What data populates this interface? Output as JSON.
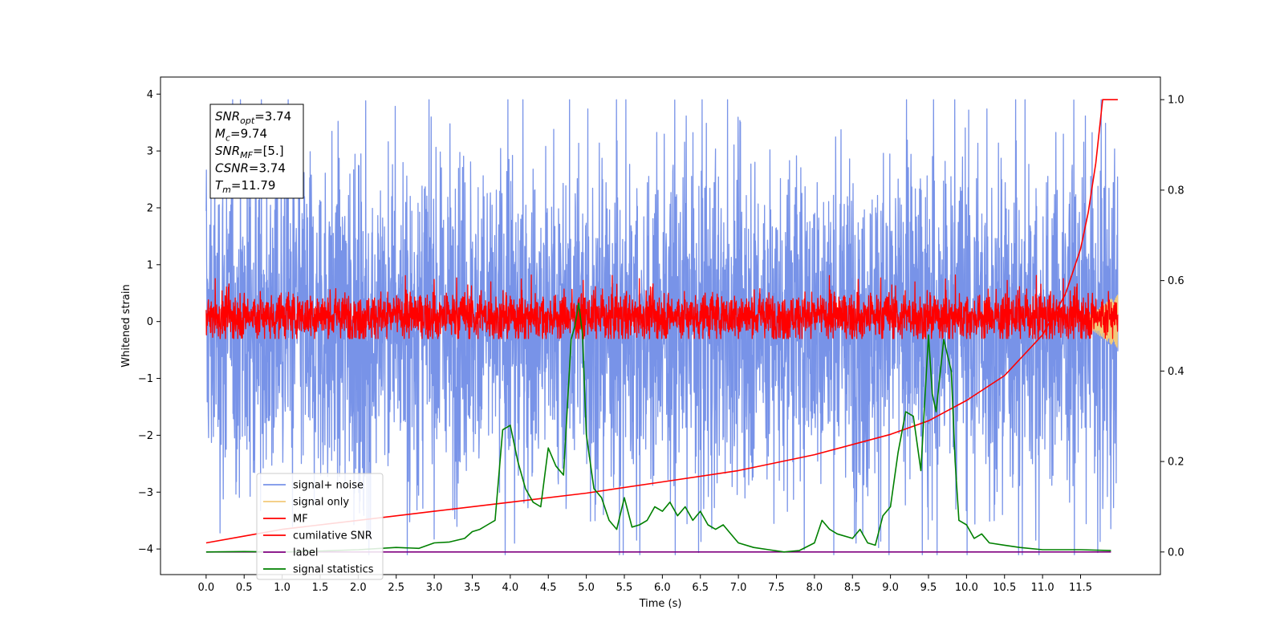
{
  "chart_data": {
    "type": "line",
    "xlabel": "Time (s)",
    "ylabel_left": "Whitened strain",
    "xlim": [
      -0.6,
      12.55
    ],
    "ylim_left": [
      -4.45,
      4.3
    ],
    "ylim_right": [
      -0.05,
      1.05
    ],
    "x_ticks": [
      "0.0",
      "0.5",
      "1.0",
      "1.5",
      "2.0",
      "2.5",
      "3.0",
      "3.5",
      "4.0",
      "4.5",
      "5.0",
      "5.5",
      "6.0",
      "6.5",
      "7.0",
      "7.5",
      "8.0",
      "8.5",
      "9.0",
      "9.5",
      "10.0",
      "10.5",
      "11.0",
      "11.5"
    ],
    "y_ticks_left": [
      "4",
      "3",
      "2",
      "1",
      "0",
      "−1",
      "−2",
      "−3",
      "−4"
    ],
    "y_ticks_right": [
      "1.0",
      "0.8",
      "0.6",
      "0.4",
      "0.2",
      "0.0"
    ],
    "grid": false,
    "legend_position": "lower-left",
    "annotation": {
      "lines": [
        {
          "base": "SNR",
          "sub": "opt",
          "value": "=3.74"
        },
        {
          "base": "M",
          "sub": "c",
          "value": "=9.74"
        },
        {
          "base": "SNR",
          "sub": "MF",
          "value": "=[5.]"
        },
        {
          "base": "CSNR",
          "sub": "",
          "value": "=3.74"
        },
        {
          "base": "T",
          "sub": "m",
          "value": "=11.79"
        }
      ]
    },
    "series": [
      {
        "name": "signal+ noise",
        "color": "#7893e8",
        "axis": "left",
        "kind": "noise",
        "x_range": [
          0.0,
          11.99
        ],
        "envelope_approx": [
          -2.5,
          2.5
        ],
        "peak_approx": [
          -4.1,
          3.9
        ]
      },
      {
        "name": "signal only",
        "color": "#f2c97a",
        "axis": "left",
        "kind": "chirp",
        "x_range": [
          11.5,
          11.99
        ],
        "amplitude_approx": 0.5
      },
      {
        "name": "MF",
        "color": "#ff0000",
        "axis": "left",
        "kind": "noise",
        "x_range": [
          0.0,
          11.99
        ],
        "envelope_approx": [
          -0.3,
          0.5
        ],
        "peak_approx": [
          -0.3,
          1.0
        ]
      },
      {
        "name": "cumilative SNR",
        "color": "#ff0000",
        "axis": "right",
        "x": [
          0.0,
          0.5,
          1.0,
          2.0,
          3.0,
          4.0,
          5.0,
          6.0,
          7.0,
          8.0,
          9.0,
          9.5,
          10.0,
          10.5,
          11.0,
          11.3,
          11.5,
          11.6,
          11.7,
          11.79,
          11.99
        ],
        "values": [
          0.02,
          0.035,
          0.05,
          0.07,
          0.09,
          0.11,
          0.13,
          0.155,
          0.18,
          0.215,
          0.26,
          0.29,
          0.335,
          0.39,
          0.48,
          0.57,
          0.67,
          0.75,
          0.86,
          1.0,
          1.0
        ]
      },
      {
        "name": "label",
        "color": "#800080",
        "axis": "right",
        "x": [
          0.0,
          11.9
        ],
        "values": [
          0.0,
          0.0
        ]
      },
      {
        "name": "signal statistics",
        "color": "#008000",
        "axis": "right",
        "x": [
          0.0,
          0.5,
          1.0,
          1.5,
          2.0,
          2.5,
          2.8,
          3.0,
          3.2,
          3.4,
          3.5,
          3.6,
          3.7,
          3.8,
          3.9,
          4.0,
          4.1,
          4.2,
          4.3,
          4.4,
          4.5,
          4.6,
          4.7,
          4.8,
          4.85,
          4.9,
          4.95,
          5.0,
          5.1,
          5.2,
          5.3,
          5.4,
          5.5,
          5.6,
          5.7,
          5.8,
          5.9,
          6.0,
          6.1,
          6.2,
          6.3,
          6.4,
          6.5,
          6.6,
          6.7,
          6.8,
          6.9,
          7.0,
          7.2,
          7.4,
          7.6,
          7.8,
          8.0,
          8.1,
          8.2,
          8.3,
          8.5,
          8.6,
          8.7,
          8.8,
          8.9,
          9.0,
          9.1,
          9.2,
          9.3,
          9.4,
          9.5,
          9.55,
          9.6,
          9.7,
          9.8,
          9.85,
          9.9,
          10.0,
          10.1,
          10.2,
          10.3,
          10.5,
          10.7,
          11.0,
          11.5,
          11.9
        ],
        "values": [
          0.0,
          0.001,
          0.0,
          0.002,
          0.005,
          0.01,
          0.008,
          0.02,
          0.022,
          0.03,
          0.045,
          0.05,
          0.06,
          0.07,
          0.27,
          0.28,
          0.2,
          0.14,
          0.11,
          0.1,
          0.23,
          0.19,
          0.17,
          0.47,
          0.5,
          0.55,
          0.48,
          0.26,
          0.14,
          0.12,
          0.07,
          0.05,
          0.12,
          0.055,
          0.06,
          0.07,
          0.1,
          0.09,
          0.11,
          0.08,
          0.1,
          0.07,
          0.09,
          0.06,
          0.05,
          0.06,
          0.04,
          0.02,
          0.01,
          0.005,
          0.0,
          0.003,
          0.02,
          0.07,
          0.05,
          0.04,
          0.03,
          0.05,
          0.02,
          0.015,
          0.08,
          0.1,
          0.22,
          0.31,
          0.3,
          0.18,
          0.48,
          0.35,
          0.31,
          0.47,
          0.4,
          0.2,
          0.07,
          0.06,
          0.03,
          0.04,
          0.02,
          0.015,
          0.01,
          0.005,
          0.005,
          0.003
        ]
      }
    ]
  }
}
